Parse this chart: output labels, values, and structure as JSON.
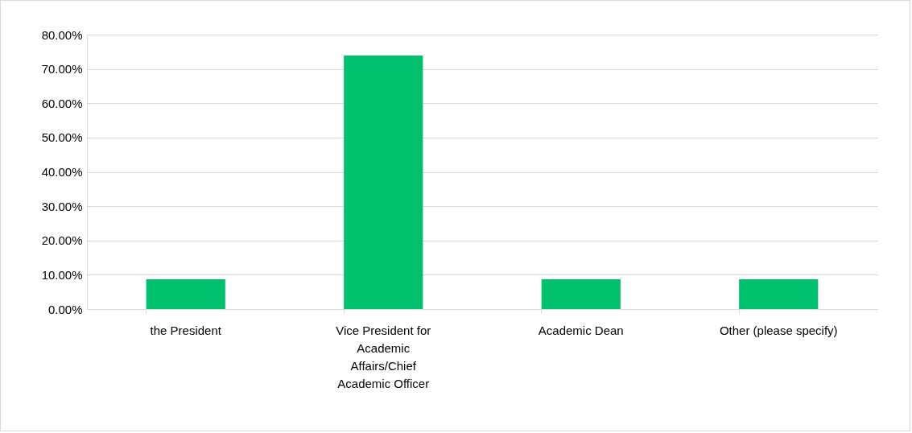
{
  "chart_data": {
    "type": "bar",
    "categories": [
      "the President",
      "Vice President for Academic Affairs/Chief Academic Officer",
      "Academic Dean",
      "Other (please specify)"
    ],
    "values": [
      8.7,
      73.9,
      8.7,
      8.7
    ],
    "color": "#00c16e",
    "ylim": [
      0,
      80
    ],
    "yticks": [
      {
        "value": 0,
        "label": "0.00%"
      },
      {
        "value": 10,
        "label": "10.00%"
      },
      {
        "value": 20,
        "label": "20.00%"
      },
      {
        "value": 30,
        "label": "30.00%"
      },
      {
        "value": 40,
        "label": "40.00%"
      },
      {
        "value": 50,
        "label": "50.00%"
      },
      {
        "value": 60,
        "label": "60.00%"
      },
      {
        "value": 70,
        "label": "70.00%"
      },
      {
        "value": 80,
        "label": "80.00%"
      }
    ],
    "grid": true
  }
}
